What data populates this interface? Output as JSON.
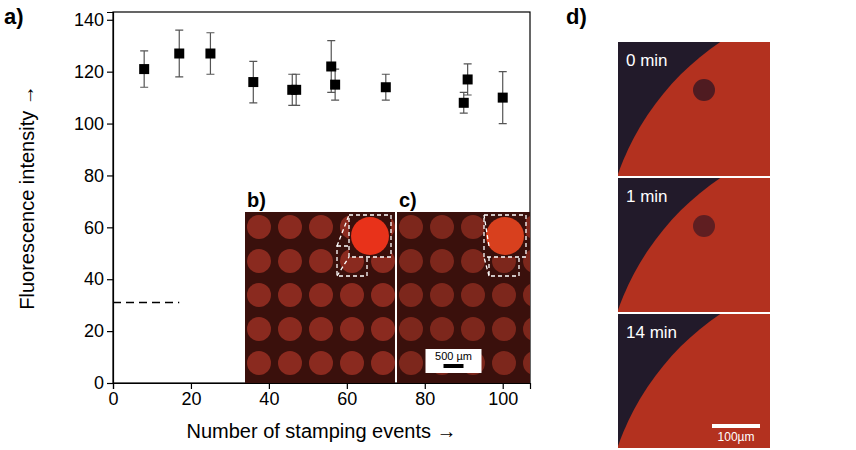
{
  "chart_data": {
    "type": "scatter",
    "panel_label": "a)",
    "x_label": "Number of stamping events →",
    "y_label": "Fluorescence intensity →",
    "x": [
      8,
      17,
      25,
      36,
      46,
      47,
      56,
      57,
      70,
      90,
      91,
      100
    ],
    "values": [
      121,
      127,
      127,
      116,
      113,
      113,
      122,
      115,
      114,
      108,
      117,
      110
    ],
    "errors": [
      7,
      9,
      8,
      8,
      6,
      6,
      10,
      6,
      5,
      4,
      6,
      10
    ],
    "color": "#000000",
    "marker": "square",
    "xlim": [
      0,
      107
    ],
    "ylim": [
      0,
      143
    ],
    "xticks": [
      0,
      20,
      40,
      60,
      80,
      100
    ],
    "yticks": [
      0,
      20,
      40,
      60,
      80,
      100,
      120,
      140
    ],
    "reference_line": {
      "y": 31,
      "x": [
        0,
        17
      ]
    }
  },
  "insets": [
    {
      "label": "b)"
    },
    {
      "label": "c)",
      "scale_bar": "500 µm"
    }
  ],
  "panel_d": {
    "label": "d)",
    "frames": [
      "0 min",
      "1 min",
      "14 min"
    ],
    "scale_bar": "100µm"
  }
}
